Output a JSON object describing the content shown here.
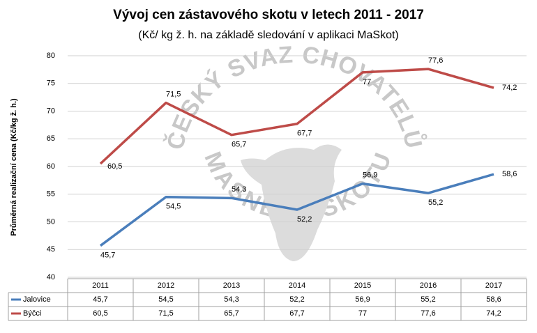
{
  "chart_data": {
    "type": "line",
    "title": "Vývoj cen zástavového skotu v letech 2011 - 2017",
    "subtitle": "(Kč/ kg ž. h. na základě sledování v aplikaci MaSkot)",
    "y_label": "Průměrná realizační cena (Kč/kg ž. h.)",
    "watermark": [
      "ČESKÝ SVAZ CHOVATELŮ",
      "MASNÉHO SKOTU"
    ],
    "categories": [
      "2011",
      "2012",
      "2013",
      "2014",
      "2015",
      "2016",
      "2017"
    ],
    "ylim": [
      40,
      80
    ],
    "yticks": [
      40,
      45,
      50,
      55,
      60,
      65,
      70,
      75,
      80
    ],
    "grid": true,
    "series": [
      {
        "name": "Jalovice",
        "color": "#4a7ebb",
        "values": [
          45.7,
          54.5,
          54.3,
          52.2,
          56.9,
          55.2,
          58.6
        ],
        "value_labels": [
          "45,7",
          "54,5",
          "54,3",
          "52,2",
          "56,9",
          "55,2",
          "58,6"
        ]
      },
      {
        "name": "Býčci",
        "color": "#be4b48",
        "values": [
          60.5,
          71.5,
          65.7,
          67.7,
          77,
          77.6,
          74.2
        ],
        "value_labels": [
          "60,5",
          "71,5",
          "65,7",
          "67,7",
          "77",
          "77,6",
          "74,2"
        ]
      }
    ]
  }
}
